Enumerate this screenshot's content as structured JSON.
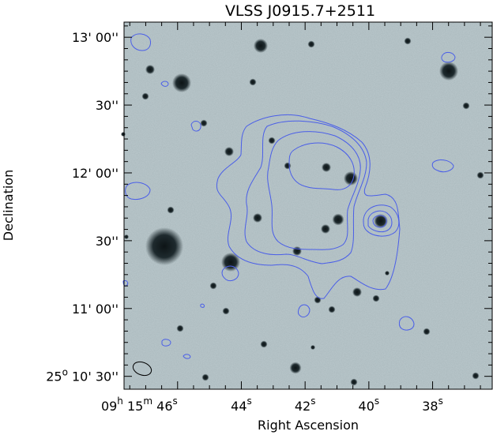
{
  "chart_data": {
    "type": "image-contour",
    "title": "VLSS J0915.7+2511",
    "xlabel": "Right Ascension",
    "ylabel": "Declination",
    "x_ticks": [
      {
        "h": "09",
        "m": "15",
        "s": "46",
        "ra_s": 46,
        "hm": true
      },
      {
        "s": "44",
        "ra_s": 44
      },
      {
        "s": "42",
        "ra_s": 42
      },
      {
        "s": "40",
        "ra_s": 40
      },
      {
        "s": "38",
        "ra_s": 38
      }
    ],
    "y_ticks": [
      {
        "deg": "",
        "min": "13'",
        "sec": "00''",
        "arcsec": 780
      },
      {
        "deg": "",
        "min": "",
        "sec": "30''",
        "arcsec": 750
      },
      {
        "deg": "",
        "min": "12'",
        "sec": "00''",
        "arcsec": 720
      },
      {
        "deg": "",
        "min": "",
        "sec": "30''",
        "arcsec": 690
      },
      {
        "deg": "",
        "min": "11'",
        "sec": "00''",
        "arcsec": 660
      },
      {
        "deg": "25",
        "min": "10'",
        "sec": "30''",
        "arcsec": 630
      }
    ],
    "ra_range_s": [
      47.68,
      36.13
    ],
    "dec_range_arcsec": [
      786.7,
      624.3
    ],
    "unit_labels": {
      "hour": "h",
      "minute": "m",
      "second": "s",
      "degree": "o"
    },
    "contour_color": "#4a5ee8",
    "background_color": "#a9b8bc"
  }
}
